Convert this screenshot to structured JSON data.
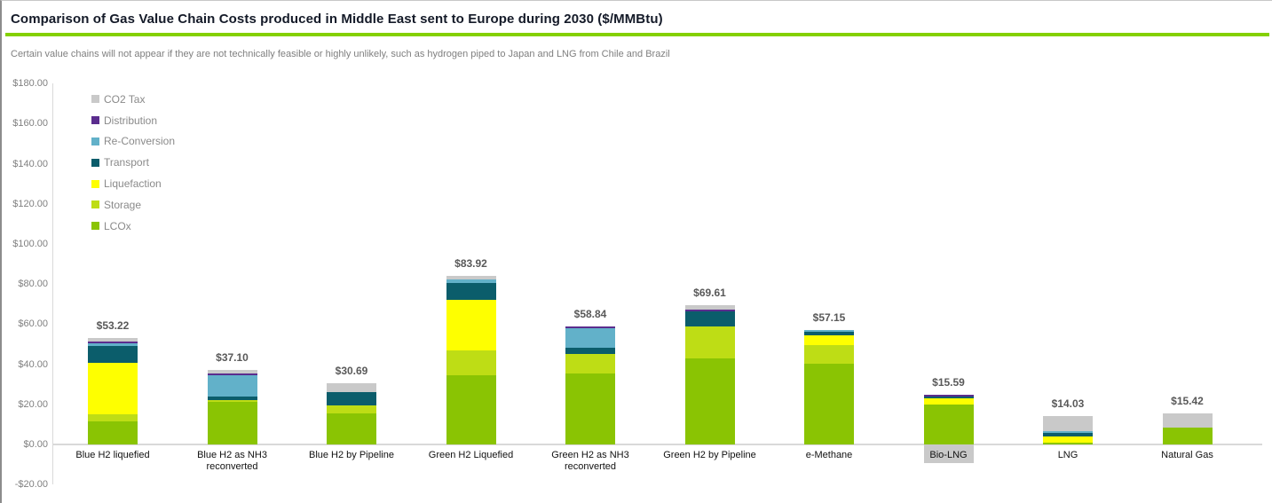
{
  "header": {
    "title": "Comparison of Gas Value Chain Costs produced in Middle East sent to Europe during 2030 ($/MMBtu)",
    "subtitle": "Certain value chains will not appear if they are not technically feasible or highly unlikely, such as hydrogen piped to Japan and LNG from Chile and Brazil",
    "accent_color": "#84d000"
  },
  "chart_data": {
    "type": "bar",
    "stacked": true,
    "title": "Comparison of Gas Value Chain Costs produced in Middle East sent to Europe during 2030 ($/MMBtu)",
    "ylabel": "$/MMBtu",
    "ylim": [
      -20,
      180
    ],
    "grid": false,
    "legend_position": "upper-left-inside",
    "yticks": [
      {
        "label": "$180.00",
        "value": 180
      },
      {
        "label": "$160.00",
        "value": 160
      },
      {
        "label": "$140.00",
        "value": 140
      },
      {
        "label": "$120.00",
        "value": 120
      },
      {
        "label": "$100.00",
        "value": 100
      },
      {
        "label": "$80.00",
        "value": 80
      },
      {
        "label": "$60.00",
        "value": 60
      },
      {
        "label": "$40.00",
        "value": 40
      },
      {
        "label": "$20.00",
        "value": 20
      },
      {
        "label": "$0.00",
        "value": 0
      },
      {
        "label": "-$20.00",
        "value": -20
      }
    ],
    "legend": [
      {
        "key": "co2_tax",
        "label": "CO2 Tax",
        "color": "#c9c9c9"
      },
      {
        "key": "distribution",
        "label": "Distribution",
        "color": "#5b2d8e"
      },
      {
        "key": "reconversion",
        "label": "Re-Conversion",
        "color": "#62b1c9"
      },
      {
        "key": "transport",
        "label": "Transport",
        "color": "#0b5d6b"
      },
      {
        "key": "liquefaction",
        "label": "Liquefaction",
        "color": "#feff00"
      },
      {
        "key": "storage",
        "label": "Storage",
        "color": "#bedd15"
      },
      {
        "key": "lcox",
        "label": "LCOx",
        "color": "#8ac403"
      }
    ],
    "stack_order": [
      "lcox",
      "storage",
      "liquefaction",
      "transport",
      "reconversion",
      "distribution",
      "co2_tax"
    ],
    "categories": [
      {
        "label": "Blue H2 liquefied",
        "total": 53.22,
        "total_label": "$53.22",
        "highlighted": false,
        "segments": {
          "lcox": 11.5,
          "storage": 3.5,
          "liquefaction": 25.8,
          "transport": 8.5,
          "reconversion": 1.2,
          "distribution": 0.9,
          "co2_tax": 1.8
        }
      },
      {
        "label": "Blue H2 as NH3 reconverted",
        "total": 37.1,
        "total_label": "$37.10",
        "highlighted": false,
        "segments": {
          "lcox": 21.3,
          "storage": 0.9,
          "transport": 1.8,
          "reconversion": 10.3,
          "distribution": 0.9,
          "co2_tax": 1.9
        }
      },
      {
        "label": "Blue H2 by Pipeline",
        "total": 30.69,
        "total_label": "$30.69",
        "highlighted": false,
        "segments": {
          "lcox": 15.5,
          "storage": 3.9,
          "transport": 6.7,
          "co2_tax": 4.6
        }
      },
      {
        "label": "Green H2 Liquefied",
        "total": 83.92,
        "total_label": "$83.92",
        "highlighted": false,
        "segments": {
          "lcox": 34.5,
          "storage": 12.5,
          "liquefaction": 25.0,
          "transport": 8.7,
          "reconversion": 1.4,
          "co2_tax": 1.8
        }
      },
      {
        "label": "Green H2 as NH3 reconverted",
        "total": 58.84,
        "total_label": "$58.84",
        "highlighted": false,
        "segments": {
          "lcox": 35.4,
          "storage": 9.9,
          "transport": 3.0,
          "reconversion": 9.5,
          "distribution": 1.0
        }
      },
      {
        "label": "Green H2 by Pipeline",
        "total": 69.61,
        "total_label": "$69.61",
        "highlighted": false,
        "segments": {
          "lcox": 42.9,
          "storage": 16.1,
          "transport": 7.2,
          "distribution": 0.9,
          "co2_tax": 2.5
        }
      },
      {
        "label": "e-Methane",
        "total": 57.15,
        "total_label": "$57.15",
        "highlighted": false,
        "segments": {
          "lcox": 40.3,
          "storage": 9.4,
          "liquefaction": 4.6,
          "transport": 2.0,
          "reconversion": 0.9
        }
      },
      {
        "label": "Bio-LNG",
        "total": 15.59,
        "total_label": "$15.59",
        "highlighted": true,
        "segments": {
          "lcox": 20.0,
          "liquefaction": 3.0,
          "transport": 1.1,
          "distribution": 0.9,
          "co2_tax": -9.4
        }
      },
      {
        "label": "LNG",
        "total": 14.03,
        "total_label": "$14.03",
        "highlighted": false,
        "segments": {
          "lcox": 1.0,
          "liquefaction": 2.9,
          "transport": 1.8,
          "reconversion": 0.8,
          "co2_tax": 7.5
        }
      },
      {
        "label": "Natural Gas",
        "total": 15.42,
        "total_label": "$15.42",
        "highlighted": false,
        "segments": {
          "lcox": 8.4,
          "co2_tax": 7.0
        }
      }
    ]
  },
  "layout_note": "highlight_color_for_category_label_background_is_the_negative_co2_segment"
}
